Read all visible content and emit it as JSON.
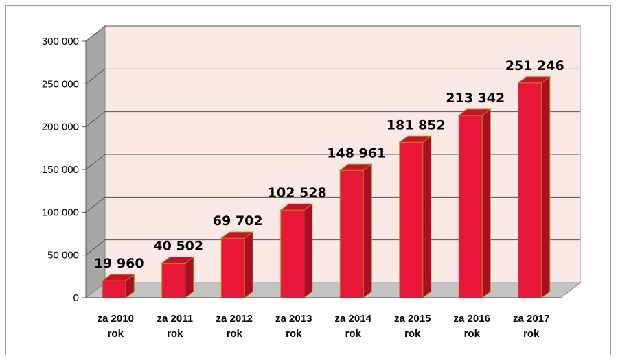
{
  "chart_data": {
    "type": "bar",
    "categories": [
      [
        "za 2010",
        "rok"
      ],
      [
        "za 2011",
        "rok"
      ],
      [
        "za 2012",
        "rok"
      ],
      [
        "za 2013",
        "rok"
      ],
      [
        "za 2014",
        "rok"
      ],
      [
        "za 2015",
        "rok"
      ],
      [
        "za 2016",
        "rok"
      ],
      [
        "za 2017",
        "rok"
      ]
    ],
    "values": [
      19960,
      40502,
      69702,
      102528,
      148961,
      181852,
      213342,
      251246
    ],
    "value_labels": [
      "19 960",
      "40 502",
      "69 702",
      "102 528",
      "148 961",
      "181 852",
      "213 342",
      "251 246"
    ],
    "y_ticks": [
      0,
      50000,
      100000,
      150000,
      200000,
      250000,
      300000
    ],
    "y_tick_labels": [
      "0",
      "50 000",
      "100 000",
      "150 000",
      "200 000",
      "250 000",
      "300 000"
    ],
    "ylim": [
      0,
      300000
    ],
    "grid": true,
    "legend": "none",
    "style": "3d-column",
    "colors": {
      "bar_front": "#e8173a",
      "bar_side": "#a80f26",
      "bar_top": "#c8112e",
      "bar_outline": "#b8860b",
      "wall": "#fbe9e7",
      "side_wall": "#a7a7a7",
      "floor": "#c3c3c3",
      "gridline": "#555555"
    }
  }
}
